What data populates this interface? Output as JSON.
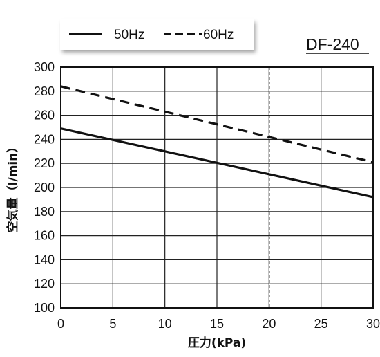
{
  "chart_data": {
    "type": "line",
    "model_label": "DF-240",
    "xlabel": "圧力(kPa)",
    "ylabel": "空気量（l/min）",
    "xlim": [
      0,
      30
    ],
    "ylim": [
      100,
      300
    ],
    "x_ticks": [
      0,
      5,
      10,
      15,
      20,
      25,
      30
    ],
    "y_ticks": [
      100,
      120,
      140,
      160,
      180,
      200,
      220,
      240,
      260,
      280,
      300
    ],
    "grid": true,
    "reference_line_x": 20,
    "legend_position": "top-left",
    "series": [
      {
        "name": "50Hz",
        "style": "solid",
        "x": [
          0,
          30
        ],
        "y": [
          249,
          192
        ],
        "color": "#111111"
      },
      {
        "name": "60Hz",
        "style": "dashed",
        "x": [
          0,
          30
        ],
        "y": [
          284,
          221
        ],
        "color": "#111111"
      }
    ]
  }
}
